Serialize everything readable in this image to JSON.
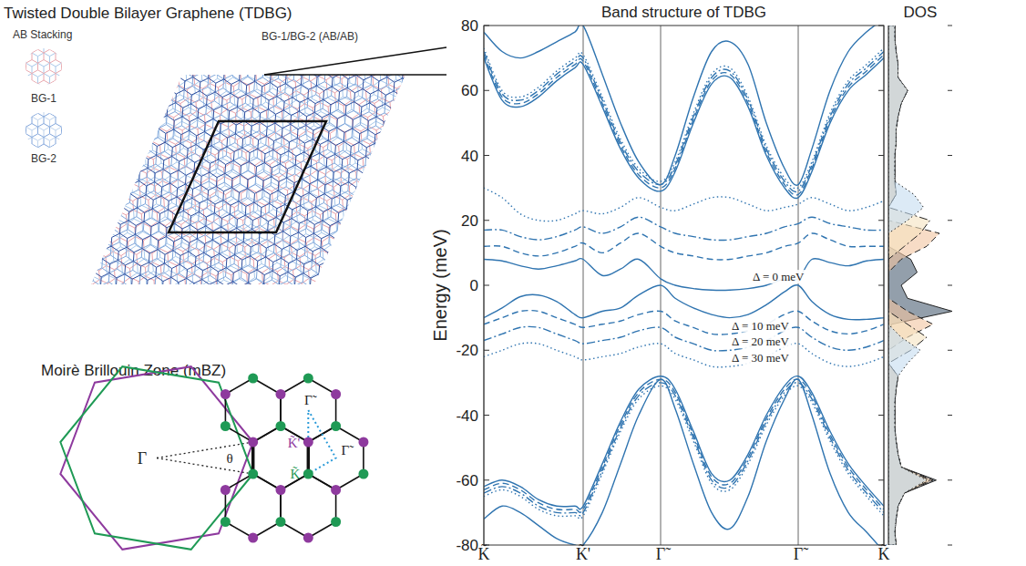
{
  "diagram": {
    "title": "Twisted Double Bilayer Graphene (TDBG)",
    "stacking_label": "AB Stacking",
    "layers": [
      "BG-1",
      "BG-2"
    ],
    "zoom_label": "BG-1/BG-2 (AB/AB)",
    "mbz_title": "Moirè Brillouin Zone (mBZ)",
    "gamma": "Γ",
    "angle": "θ",
    "mbz_points": {
      "gamma_top": "Γ̃",
      "k_prime": "K̃'",
      "k": "K̃",
      "gamma_right": "Γ̃"
    }
  },
  "chart_data": [
    {
      "type": "line",
      "title": "Band structure of TDBG",
      "y_label": "Energy (meV)",
      "grid": true,
      "x": [
        0,
        0.2,
        0.4,
        0.6,
        0.8,
        1.0,
        1.09,
        1.3,
        1.5,
        1.7,
        1.94,
        2.1,
        2.3,
        2.5,
        2.7,
        2.9,
        3.1,
        3.3,
        3.45,
        3.6,
        3.8,
        4.0,
        4.2,
        4.39
      ],
      "xlim": [
        0,
        4.39
      ],
      "xticks": [
        {
          "value": 0,
          "label": "K̃"
        },
        {
          "value": 1.09,
          "label": "K̃'"
        },
        {
          "value": 1.94,
          "label": "Γ̃"
        },
        {
          "value": 3.45,
          "label": "Γ̃"
        },
        {
          "value": 4.39,
          "label": "K̃"
        }
      ],
      "ylim": [
        -80,
        80
      ],
      "yticks": [
        -80,
        -60,
        -40,
        -20,
        0,
        20,
        40,
        60,
        80
      ],
      "series": [
        {
          "name": "Δ = 0 meV",
          "color": "#2f74b0",
          "line_style": "solid",
          "bands": [
            {
              "values": [
                8,
                7.5,
                6,
                5,
                6,
                7.5,
                8,
                3,
                5,
                8,
                2,
                0,
                -1,
                -1.5,
                -1.5,
                -1,
                0,
                2,
                2,
                8,
                7,
                6,
                7.5,
                8
              ]
            },
            {
              "values": [
                -10,
                -7,
                -3.5,
                -3,
                -5,
                -9,
                -10,
                -8,
                -7,
                -3,
                0,
                -4,
                -7,
                -9,
                -10,
                -9,
                -6,
                -2,
                0,
                -5,
                -9,
                -10.5,
                -10.5,
                -10
              ]
            },
            {
              "values": [
                70,
                57,
                55,
                58,
                63,
                67,
                68,
                55,
                42,
                33,
                29,
                35,
                50,
                62,
                64,
                55,
                40,
                30,
                27,
                35,
                50,
                60,
                65,
                70
              ]
            },
            {
              "values": [
                78,
                72,
                70,
                72,
                75,
                78,
                80,
                65,
                50,
                38,
                31,
                40,
                58,
                72,
                75,
                68,
                50,
                36,
                31,
                42,
                60,
                72,
                78,
                82
              ]
            },
            {
              "values": [
                -62,
                -60,
                -62,
                -66,
                -68,
                -68,
                -68,
                -55,
                -42,
                -32,
                -28,
                -32,
                -45,
                -58,
                -60,
                -52,
                -40,
                -31,
                -28,
                -33,
                -45,
                -55,
                -62,
                -68
              ]
            },
            {
              "values": [
                -72,
                -68,
                -70,
                -74,
                -78,
                -80,
                -80,
                -70,
                -55,
                -40,
                -29,
                -38,
                -55,
                -70,
                -75,
                -65,
                -48,
                -35,
                -29,
                -40,
                -58,
                -70,
                -76,
                -82
              ]
            }
          ]
        },
        {
          "name": "Δ = 10 meV",
          "color": "#2f74b0",
          "line_style": "dashed",
          "bands": [
            {
              "values": [
                12,
                12,
                10,
                9,
                10,
                12,
                13,
                10,
                13,
                16,
                12,
                10,
                9,
                8,
                8,
                9,
                10,
                12,
                13,
                16,
                14,
                12,
                12,
                12
              ]
            },
            {
              "values": [
                -12,
                -10,
                -8,
                -8,
                -10,
                -12,
                -13,
                -12,
                -11,
                -9,
                -8,
                -11,
                -13,
                -15,
                -15,
                -14,
                -12,
                -9,
                -8,
                -11,
                -14,
                -15,
                -14,
                -12
              ]
            },
            {
              "values": [
                71,
                58,
                56,
                59,
                64,
                68,
                69,
                56,
                43,
                34,
                30,
                36,
                51,
                63,
                65,
                56,
                41,
                31,
                28,
                36,
                51,
                61,
                66,
                71
              ]
            },
            {
              "values": [
                -63,
                -61,
                -63,
                -67,
                -69,
                -69,
                -69,
                -56,
                -43,
                -33,
                -29,
                -33,
                -46,
                -59,
                -61,
                -53,
                -41,
                -32,
                -29,
                -34,
                -46,
                -56,
                -63,
                -69
              ]
            }
          ]
        },
        {
          "name": "Δ = 20 meV",
          "color": "#2f74b0",
          "line_style": "dashdot",
          "bands": [
            {
              "values": [
                17,
                17,
                15,
                14,
                15,
                17,
                18,
                16,
                18,
                21,
                18,
                16,
                15,
                14,
                14,
                15,
                16,
                18,
                19,
                21,
                19,
                18,
                17,
                17
              ]
            },
            {
              "values": [
                -17,
                -15,
                -13,
                -13,
                -15,
                -17,
                -18,
                -17,
                -16,
                -14,
                -13,
                -16,
                -18,
                -20,
                -20,
                -19,
                -17,
                -14,
                -13,
                -16,
                -19,
                -20,
                -19,
                -17
              ]
            },
            {
              "values": [
                72,
                59,
                57,
                60,
                65,
                69,
                70,
                57,
                44,
                35,
                31,
                37,
                52,
                64,
                66,
                57,
                42,
                32,
                29,
                37,
                52,
                62,
                67,
                72
              ]
            },
            {
              "values": [
                -64,
                -62,
                -64,
                -68,
                -70,
                -70,
                -70,
                -57,
                -44,
                -34,
                -30,
                -34,
                -47,
                -60,
                -62,
                -54,
                -42,
                -33,
                -30,
                -35,
                -47,
                -57,
                -64,
                -70
              ]
            }
          ]
        },
        {
          "name": "Δ = 30 meV",
          "color": "#2f74b0",
          "line_style": "dotted",
          "bands": [
            {
              "values": [
                30,
                27,
                22,
                20,
                20,
                22,
                23,
                22,
                24,
                27,
                24,
                23,
                25,
                27,
                27,
                25,
                23,
                24,
                25,
                27,
                25,
                23,
                24,
                26
              ]
            },
            {
              "values": [
                -22,
                -20,
                -18,
                -18,
                -20,
                -22,
                -23,
                -22,
                -21,
                -19,
                -18,
                -21,
                -23,
                -25,
                -25,
                -24,
                -22,
                -19,
                -18,
                -21,
                -24,
                -25,
                -24,
                -22
              ]
            },
            {
              "values": [
                73,
                60,
                58,
                61,
                66,
                70,
                71,
                58,
                45,
                36,
                32,
                38,
                53,
                65,
                67,
                58,
                43,
                33,
                30,
                38,
                53,
                63,
                68,
                73
              ]
            },
            {
              "values": [
                -65,
                -63,
                -65,
                -69,
                -71,
                -71,
                -71,
                -58,
                -45,
                -35,
                -31,
                -35,
                -48,
                -61,
                -63,
                -55,
                -43,
                -34,
                -31,
                -36,
                -48,
                -58,
                -65,
                -71
              ]
            }
          ]
        }
      ]
    },
    {
      "type": "area",
      "title": "DOS",
      "orientation": "horizontal",
      "tick_labels": false,
      "y": [
        -80,
        -76,
        -72,
        -68,
        -64,
        -60,
        -56,
        -52,
        -48,
        -44,
        -40,
        -36,
        -32,
        -28,
        -24,
        -20,
        -16,
        -12,
        -8,
        -4,
        0,
        4,
        8,
        12,
        16,
        20,
        24,
        28,
        32,
        36,
        40,
        44,
        48,
        52,
        56,
        60,
        64,
        68,
        72,
        76,
        80
      ],
      "ylim": [
        -80,
        80
      ],
      "yticks": [
        -80,
        -60,
        -40,
        -20,
        0,
        20,
        40,
        60,
        80
      ],
      "xlim": [
        0,
        1
      ],
      "series": [
        {
          "color": "#8d9aa6",
          "line_style": "solid",
          "values": [
            0.12,
            0.1,
            0.12,
            0.15,
            0.25,
            0.75,
            0.2,
            0.15,
            0.12,
            0.1,
            0.1,
            0.1,
            0.12,
            0.15,
            0,
            0,
            0,
            0.05,
            1.0,
            0.3,
            0.2,
            0.45,
            0.35,
            0,
            0,
            0,
            0,
            0.12,
            0.1,
            0.1,
            0.1,
            0.12,
            0.12,
            0.15,
            0.2,
            0.3,
            0.15,
            0.15,
            0.12,
            0.1,
            0.1
          ]
        },
        {
          "color": "#f2c4a0",
          "line_style": "dashed",
          "values": [
            0.12,
            0.1,
            0.12,
            0.15,
            0.25,
            0.7,
            0.2,
            0.15,
            0.12,
            0.1,
            0.1,
            0.1,
            0.12,
            0.15,
            0,
            0,
            0.3,
            0.7,
            0.3,
            0,
            0,
            0,
            0.2,
            0.6,
            0.8,
            0,
            0,
            0.12,
            0.1,
            0.1,
            0.1,
            0.12,
            0.12,
            0.15,
            0.2,
            0.3,
            0.15,
            0.15,
            0.12,
            0.1,
            0.1
          ]
        },
        {
          "color": "#f5e2c0",
          "line_style": "dashdot",
          "values": [
            0.12,
            0.1,
            0.12,
            0.15,
            0.25,
            0.65,
            0.2,
            0.15,
            0.12,
            0.1,
            0.1,
            0.1,
            0.12,
            0.15,
            0,
            0.35,
            0.6,
            0.3,
            0,
            0,
            0,
            0,
            0,
            0.25,
            0.5,
            0.65,
            0,
            0.12,
            0.1,
            0.1,
            0.1,
            0.12,
            0.12,
            0.15,
            0.2,
            0.3,
            0.15,
            0.15,
            0.12,
            0.1,
            0.1
          ]
        },
        {
          "color": "#c4dcf0",
          "line_style": "dotted",
          "values": [
            0.12,
            0.1,
            0.12,
            0.15,
            0.25,
            0.6,
            0.2,
            0.15,
            0.12,
            0.1,
            0.1,
            0.1,
            0.12,
            0.15,
            0.3,
            0.5,
            0.2,
            0,
            0,
            0,
            0,
            0,
            0,
            0,
            0,
            0.3,
            0.55,
            0.4,
            0.1,
            0.1,
            0.1,
            0.12,
            0.12,
            0.15,
            0.2,
            0.3,
            0.15,
            0.15,
            0.12,
            0.1,
            0.1
          ]
        }
      ]
    }
  ]
}
